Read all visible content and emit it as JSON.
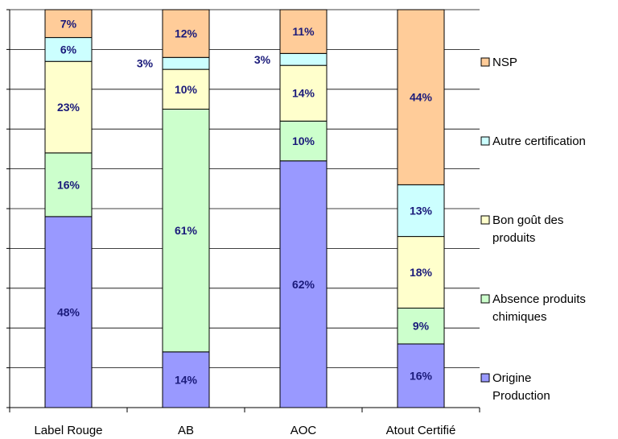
{
  "chart_data": {
    "type": "bar",
    "stacked": true,
    "percent": true,
    "title": "",
    "xlabel": "",
    "ylabel": "",
    "ylim": [
      0,
      100
    ],
    "grid": true,
    "legend_position": "right",
    "categories": [
      "Label Rouge",
      "AB",
      "AOC",
      "Atout Certifié"
    ],
    "series": [
      {
        "name": "Origine Production",
        "color": "#9999ff",
        "values": [
          48,
          14,
          62,
          16
        ],
        "labels": [
          "48%",
          "14%",
          "62%",
          "16%"
        ]
      },
      {
        "name": "Absence produits chimiques",
        "color": "#ccffcc",
        "values": [
          16,
          61,
          10,
          9
        ],
        "labels": [
          "16%",
          "61%",
          "10%",
          "9%"
        ]
      },
      {
        "name": "Bon goût des produits",
        "color": "#ffffcc",
        "values": [
          23,
          10,
          14,
          18
        ],
        "labels": [
          "23%",
          "10%",
          "14%",
          "18%"
        ]
      },
      {
        "name": "Autre certification",
        "color": "#ccffff",
        "values": [
          6,
          3,
          3,
          13
        ],
        "labels": [
          "6%",
          "3%",
          "3%",
          "13%"
        ]
      },
      {
        "name": "NSP",
        "color": "#ffcc99",
        "values": [
          7,
          12,
          11,
          44
        ],
        "labels": [
          "7%",
          "12%",
          "11%",
          "44%"
        ]
      }
    ],
    "legend": {
      "order": [
        "NSP",
        "Autre certification",
        "Bon goût des produits",
        "Absence produits chimiques",
        "Origine Production"
      ],
      "lines": {
        "NSP": [
          "NSP"
        ],
        "Autre certification": [
          "Autre certification"
        ],
        "Bon goût des produits": [
          "Bon goût des",
          "produits"
        ],
        "Absence produits chimiques": [
          "Absence produits",
          "chimiques"
        ],
        "Origine Production": [
          "Origine",
          "Production"
        ]
      }
    }
  }
}
